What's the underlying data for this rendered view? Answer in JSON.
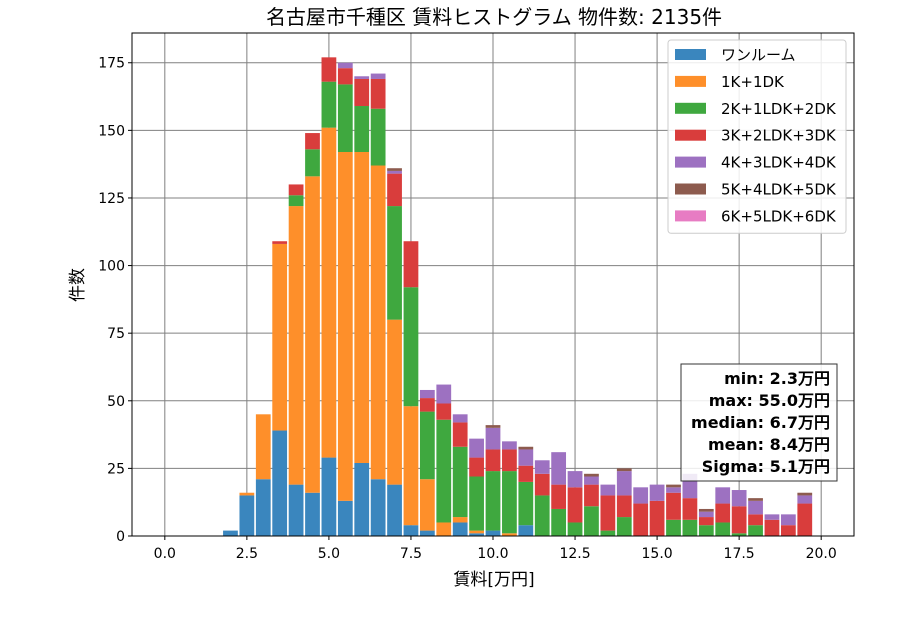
{
  "chart_data": {
    "type": "bar",
    "stacked": true,
    "title": "名古屋市千種区 賃料ヒストグラム  物件数: 2135件",
    "xlabel": "賃料[万円]",
    "ylabel": "件数",
    "xlim": [
      -1.0,
      21.0
    ],
    "ylim": [
      0,
      186
    ],
    "grid": true,
    "legend_position": "top-right",
    "xticks": [
      0.0,
      2.5,
      5.0,
      7.5,
      10.0,
      12.5,
      15.0,
      17.5,
      20.0
    ],
    "xtick_labels": [
      "0.0",
      "2.5",
      "5.0",
      "7.5",
      "10.0",
      "12.5",
      "15.0",
      "17.5",
      "20.0"
    ],
    "yticks": [
      0,
      25,
      50,
      75,
      100,
      125,
      150,
      175
    ],
    "ytick_labels": [
      "0",
      "25",
      "50",
      "75",
      "100",
      "125",
      "150",
      "175"
    ],
    "bin_width": 0.5,
    "bin_centers": [
      2.0,
      2.5,
      3.0,
      3.5,
      4.0,
      4.5,
      5.0,
      5.5,
      6.0,
      6.5,
      7.0,
      7.5,
      8.0,
      8.5,
      9.0,
      9.5,
      10.0,
      10.5,
      11.0,
      11.5,
      12.0,
      12.5,
      13.0,
      13.5,
      14.0,
      14.5,
      15.0,
      15.5,
      16.0,
      16.5,
      17.0,
      17.5,
      18.0,
      18.5,
      19.0,
      19.5
    ],
    "series": [
      {
        "name": "ワンルーム",
        "color": "#3a86be",
        "values": [
          2,
          15,
          21,
          39,
          19,
          16,
          29,
          13,
          27,
          21,
          19,
          4,
          2,
          0,
          5,
          1,
          2,
          0,
          4,
          0,
          0,
          0,
          0,
          0,
          0,
          0,
          0,
          0,
          0,
          0,
          0,
          0,
          0,
          0,
          0,
          0
        ]
      },
      {
        "name": "1K+1DK",
        "color": "#fe8f2a",
        "values": [
          0,
          1,
          24,
          69,
          103,
          117,
          122,
          129,
          115,
          116,
          61,
          44,
          19,
          5,
          2,
          1,
          0,
          1,
          0,
          0,
          0,
          0,
          0,
          0,
          0,
          0,
          0,
          0,
          0,
          0,
          0,
          0,
          0,
          0,
          0,
          0
        ]
      },
      {
        "name": "2K+1LDK+2DK",
        "color": "#3fa83f",
        "values": [
          0,
          0,
          0,
          0,
          4,
          10,
          17,
          25,
          17,
          21,
          42,
          44,
          25,
          38,
          26,
          20,
          22,
          23,
          16,
          15,
          10,
          5,
          11,
          2,
          7,
          0,
          0,
          6,
          6,
          4,
          5,
          1,
          4,
          0,
          0,
          0
        ]
      },
      {
        "name": "3K+2LDK+3DK",
        "color": "#d93d3c",
        "values": [
          0,
          0,
          0,
          1,
          4,
          6,
          9,
          6,
          10,
          11,
          12,
          17,
          5,
          6,
          9,
          7,
          8,
          8,
          6,
          8,
          9,
          13,
          8,
          13,
          8,
          12,
          13,
          10,
          8,
          3,
          7,
          10,
          4,
          6,
          4,
          12
        ]
      },
      {
        "name": "4K+3LDK+4DK",
        "color": "#9d71c1",
        "values": [
          0,
          0,
          0,
          0,
          0,
          0,
          0,
          2,
          1,
          2,
          1,
          0,
          3,
          7,
          3,
          7,
          8,
          3,
          6,
          5,
          12,
          6,
          3,
          4,
          9,
          6,
          6,
          2,
          9,
          2,
          6,
          6,
          5,
          2,
          4,
          3
        ]
      },
      {
        "name": "5K+4LDK+5DK",
        "color": "#8d5b4e",
        "values": [
          0,
          0,
          0,
          0,
          0,
          0,
          0,
          0,
          0,
          0,
          1,
          0,
          0,
          0,
          0,
          0,
          1,
          0,
          1,
          0,
          0,
          0,
          1,
          0,
          1,
          0,
          0,
          1,
          0,
          1,
          0,
          0,
          1,
          0,
          0,
          1
        ]
      },
      {
        "name": "6K+5LDK+6DK",
        "color": "#e77cc3",
        "values": [
          0,
          0,
          0,
          0,
          0,
          0,
          0,
          0,
          0,
          0,
          0,
          0,
          0,
          0,
          0,
          0,
          0,
          0,
          0,
          0,
          0,
          0,
          0,
          0,
          0,
          0,
          0,
          0,
          0,
          0,
          0,
          0,
          0,
          0,
          0,
          0
        ]
      }
    ],
    "stats": {
      "min": "min: 2.3万円",
      "max": "max: 55.0万円",
      "median": "median: 6.7万円",
      "mean": "mean: 8.4万円",
      "sigma": "Sigma: 5.1万円"
    }
  }
}
